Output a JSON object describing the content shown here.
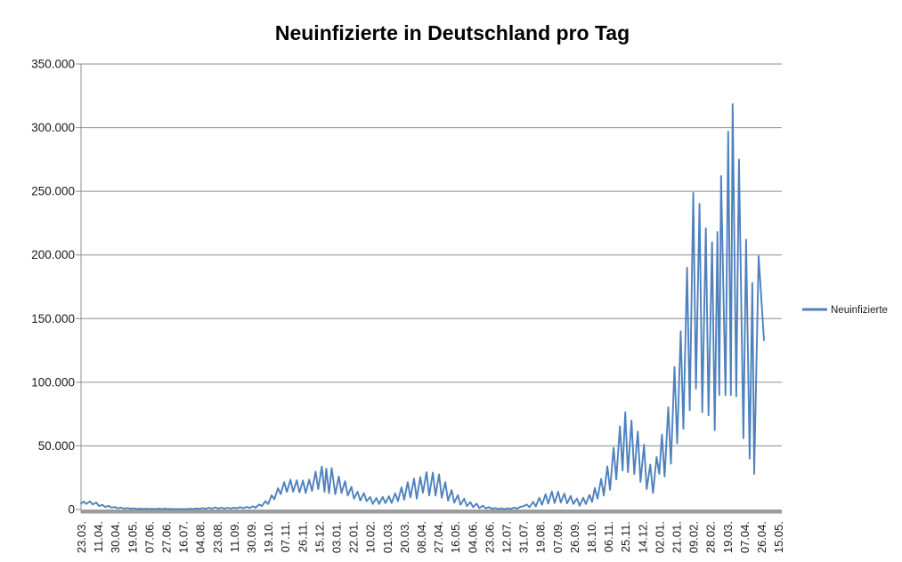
{
  "page": {
    "background": "#FFFFFF"
  },
  "chart_data": {
    "type": "line",
    "title": "Neuinfizierte in Deutschland pro Tag",
    "legend": {
      "position": "right",
      "entries": [
        "Neuinfizierte"
      ]
    },
    "grid": {
      "horizontal": true,
      "color": "#8C8C8C"
    },
    "axis_bar_color": "#9D9D9D",
    "axis_line_color": "#8C8C8C",
    "text_color": "#1A1A1A",
    "y_axis": {
      "min": 0,
      "max": 350000,
      "step": 50000,
      "tick_labels": [
        "0",
        "50.000",
        "100.000",
        "150.000",
        "200.000",
        "250.000",
        "300.000",
        "350.000"
      ]
    },
    "x_axis": {
      "n_categories": 780,
      "label_interval_categories": 19,
      "labels_rotated_degrees": -90,
      "tick_labels": [
        "23.03.",
        "11.04.",
        "30.04.",
        "19.05.",
        "07.06.",
        "27.06.",
        "16.07.",
        "04.08.",
        "23.08.",
        "11.09.",
        "30.09.",
        "19.10.",
        "07.11.",
        "26.11.",
        "15.12.",
        "03.01.",
        "22.01.",
        "10.02.",
        "01.03.",
        "20.03.",
        "08.04.",
        "27.04.",
        "16.05.",
        "04.06.",
        "23.06.",
        "12.07.",
        "31.07.",
        "19.08.",
        "07.09.",
        "26.09.",
        "18.10.",
        "06.11.",
        "25.11.",
        "14.12.",
        "02.01.",
        "21.01.",
        "09.02.",
        "28.02.",
        "19.03.",
        "07.04.",
        "26.04.",
        "15.05."
      ]
    },
    "series": [
      {
        "name": "Neuinfizierte",
        "color": "#4F81BD",
        "points": [
          [
            0,
            4700
          ],
          [
            3,
            6300
          ],
          [
            6,
            4300
          ],
          [
            10,
            6500
          ],
          [
            13,
            4000
          ],
          [
            17,
            5500
          ],
          [
            20,
            2800
          ],
          [
            24,
            3600
          ],
          [
            27,
            2000
          ],
          [
            31,
            2900
          ],
          [
            34,
            1500
          ],
          [
            38,
            2000
          ],
          [
            41,
            1000
          ],
          [
            45,
            1500
          ],
          [
            48,
            800
          ],
          [
            52,
            1200
          ],
          [
            55,
            600
          ],
          [
            59,
            900
          ],
          [
            62,
            450
          ],
          [
            66,
            700
          ],
          [
            69,
            380
          ],
          [
            73,
            600
          ],
          [
            76,
            330
          ],
          [
            80,
            550
          ],
          [
            83,
            300
          ],
          [
            87,
            800
          ],
          [
            90,
            450
          ],
          [
            94,
            700
          ],
          [
            97,
            400
          ],
          [
            101,
            500
          ],
          [
            104,
            300
          ],
          [
            108,
            450
          ],
          [
            111,
            250
          ],
          [
            115,
            450
          ],
          [
            118,
            300
          ],
          [
            122,
            600
          ],
          [
            125,
            400
          ],
          [
            129,
            900
          ],
          [
            132,
            500
          ],
          [
            136,
            1100
          ],
          [
            139,
            600
          ],
          [
            143,
            1400
          ],
          [
            146,
            700
          ],
          [
            150,
            1700
          ],
          [
            153,
            800
          ],
          [
            157,
            1500
          ],
          [
            160,
            700
          ],
          [
            164,
            1400
          ],
          [
            167,
            800
          ],
          [
            171,
            1500
          ],
          [
            174,
            900
          ],
          [
            178,
            1900
          ],
          [
            181,
            1000
          ],
          [
            185,
            2100
          ],
          [
            188,
            1200
          ],
          [
            192,
            2500
          ],
          [
            195,
            1400
          ],
          [
            199,
            4000
          ],
          [
            202,
            2800
          ],
          [
            206,
            6600
          ],
          [
            209,
            4300
          ],
          [
            213,
            11200
          ],
          [
            216,
            8000
          ],
          [
            220,
            16800
          ],
          [
            223,
            12100
          ],
          [
            227,
            21500
          ],
          [
            230,
            13800
          ],
          [
            234,
            23500
          ],
          [
            237,
            14000
          ],
          [
            241,
            23000
          ],
          [
            244,
            13500
          ],
          [
            248,
            22800
          ],
          [
            251,
            13000
          ],
          [
            255,
            23500
          ],
          [
            258,
            14500
          ],
          [
            262,
            29800
          ],
          [
            265,
            16000
          ],
          [
            269,
            33800
          ],
          [
            272,
            14000
          ],
          [
            274,
            32200
          ],
          [
            277,
            12800
          ],
          [
            280,
            32500
          ],
          [
            284,
            12000
          ],
          [
            288,
            26000
          ],
          [
            291,
            13000
          ],
          [
            295,
            22300
          ],
          [
            298,
            11000
          ],
          [
            302,
            17800
          ],
          [
            305,
            8500
          ],
          [
            309,
            14000
          ],
          [
            312,
            7000
          ],
          [
            316,
            12900
          ],
          [
            319,
            6500
          ],
          [
            323,
            9900
          ],
          [
            326,
            4400
          ],
          [
            330,
            9100
          ],
          [
            333,
            4400
          ],
          [
            337,
            9900
          ],
          [
            340,
            5000
          ],
          [
            344,
            10500
          ],
          [
            347,
            5100
          ],
          [
            351,
            12800
          ],
          [
            354,
            6600
          ],
          [
            358,
            17500
          ],
          [
            361,
            7700
          ],
          [
            365,
            21500
          ],
          [
            368,
            9500
          ],
          [
            372,
            24300
          ],
          [
            375,
            8500
          ],
          [
            379,
            25500
          ],
          [
            382,
            13200
          ],
          [
            386,
            29400
          ],
          [
            389,
            11000
          ],
          [
            393,
            29000
          ],
          [
            396,
            11000
          ],
          [
            400,
            27600
          ],
          [
            403,
            9200
          ],
          [
            407,
            21500
          ],
          [
            410,
            6900
          ],
          [
            414,
            15300
          ],
          [
            417,
            5400
          ],
          [
            421,
            11300
          ],
          [
            424,
            3700
          ],
          [
            428,
            8500
          ],
          [
            431,
            2700
          ],
          [
            435,
            5800
          ],
          [
            438,
            1900
          ],
          [
            442,
            4600
          ],
          [
            445,
            1100
          ],
          [
            449,
            3100
          ],
          [
            452,
            900
          ],
          [
            456,
            1900
          ],
          [
            459,
            500
          ],
          [
            463,
            1200
          ],
          [
            466,
            400
          ],
          [
            470,
            900
          ],
          [
            473,
            350
          ],
          [
            477,
            1000
          ],
          [
            480,
            500
          ],
          [
            484,
            1500
          ],
          [
            487,
            700
          ],
          [
            491,
            2200
          ],
          [
            494,
            2500
          ],
          [
            498,
            4000
          ],
          [
            501,
            1800
          ],
          [
            505,
            6000
          ],
          [
            508,
            2500
          ],
          [
            512,
            9300
          ],
          [
            515,
            3700
          ],
          [
            519,
            12000
          ],
          [
            522,
            4700
          ],
          [
            526,
            14200
          ],
          [
            529,
            5000
          ],
          [
            533,
            14000
          ],
          [
            536,
            5500
          ],
          [
            540,
            12500
          ],
          [
            543,
            4800
          ],
          [
            547,
            10700
          ],
          [
            550,
            4400
          ],
          [
            554,
            8600
          ],
          [
            557,
            3000
          ],
          [
            561,
            9200
          ],
          [
            564,
            4300
          ],
          [
            568,
            11500
          ],
          [
            571,
            6000
          ],
          [
            574,
            17000
          ],
          [
            577,
            8500
          ],
          [
            581,
            24000
          ],
          [
            584,
            11000
          ],
          [
            588,
            34000
          ],
          [
            591,
            15500
          ],
          [
            595,
            48600
          ],
          [
            598,
            23600
          ],
          [
            602,
            65400
          ],
          [
            605,
            30600
          ],
          [
            608,
            76400
          ],
          [
            611,
            29300
          ],
          [
            615,
            70000
          ],
          [
            618,
            27800
          ],
          [
            622,
            61300
          ],
          [
            625,
            21700
          ],
          [
            629,
            50900
          ],
          [
            632,
            16100
          ],
          [
            636,
            35400
          ],
          [
            639,
            13000
          ],
          [
            643,
            41200
          ],
          [
            646,
            28000
          ],
          [
            649,
            58900
          ],
          [
            652,
            26000
          ],
          [
            656,
            80400
          ],
          [
            659,
            36000
          ],
          [
            663,
            112000
          ],
          [
            666,
            52000
          ],
          [
            670,
            140200
          ],
          [
            673,
            63400
          ],
          [
            677,
            190100
          ],
          [
            680,
            78000
          ],
          [
            684,
            248800
          ],
          [
            687,
            95000
          ],
          [
            691,
            240200
          ],
          [
            694,
            76500
          ],
          [
            698,
            221000
          ],
          [
            701,
            74000
          ],
          [
            705,
            210000
          ],
          [
            708,
            62300
          ],
          [
            711,
            218000
          ],
          [
            713,
            90000
          ],
          [
            715,
            262000
          ],
          [
            720,
            90000
          ],
          [
            723,
            297000
          ],
          [
            726,
            90000
          ],
          [
            728,
            318500
          ],
          [
            732,
            89000
          ],
          [
            735,
            275000
          ],
          [
            740,
            56000
          ],
          [
            743,
            212000
          ],
          [
            747,
            40000
          ],
          [
            750,
            178000
          ],
          [
            752,
            28000
          ],
          [
            757,
            199000
          ],
          [
            763,
            133000
          ]
        ]
      }
    ]
  }
}
